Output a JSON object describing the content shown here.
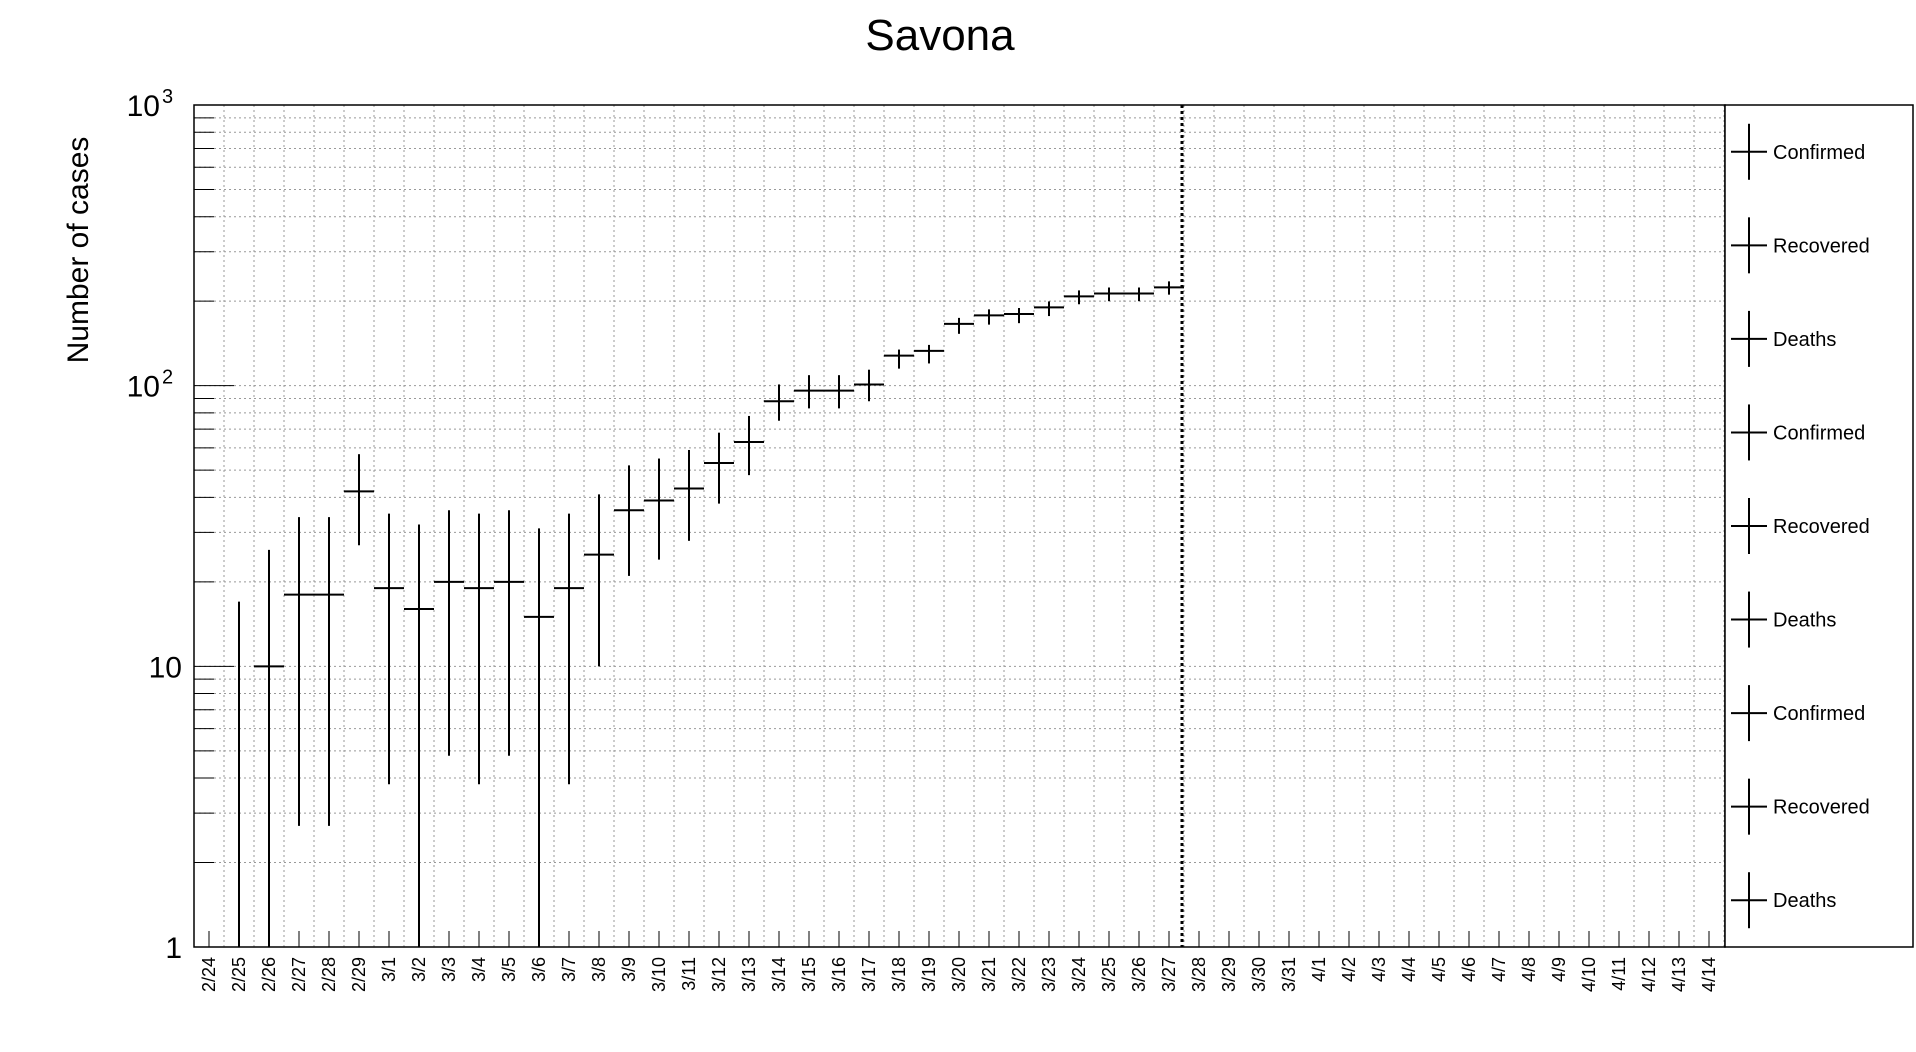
{
  "chart_data": {
    "type": "scatter",
    "title": "Savona",
    "xlabel": "",
    "ylabel": "Number of cases",
    "yscale": "log",
    "ylim": [
      1,
      1000
    ],
    "y_ticks": [
      {
        "value": 1,
        "base": "1",
        "exp": ""
      },
      {
        "value": 10,
        "base": "10",
        "exp": ""
      },
      {
        "value": 100,
        "base": "10",
        "exp": "2"
      },
      {
        "value": 1000,
        "base": "10",
        "exp": "3"
      }
    ],
    "grid": true,
    "legend_position": "right",
    "categories": [
      "2/24",
      "2/25",
      "2/26",
      "2/27",
      "2/28",
      "2/29",
      "3/1",
      "3/2",
      "3/3",
      "3/4",
      "3/5",
      "3/6",
      "3/7",
      "3/8",
      "3/9",
      "3/10",
      "3/11",
      "3/12",
      "3/13",
      "3/14",
      "3/15",
      "3/16",
      "3/17",
      "3/18",
      "3/19",
      "3/20",
      "3/21",
      "3/22",
      "3/23",
      "3/24",
      "3/25",
      "3/26",
      "3/27",
      "3/28",
      "3/29",
      "3/30",
      "3/31",
      "4/1",
      "4/2",
      "4/3",
      "4/4",
      "4/5",
      "4/6",
      "4/7",
      "4/8",
      "4/9",
      "4/10",
      "4/11",
      "4/12",
      "4/13",
      "4/14"
    ],
    "current_date_marker": "3/27",
    "series": [
      {
        "name": "Confirmed",
        "values": [
          null,
          null,
          10,
          18,
          18,
          42,
          19,
          16,
          20,
          19,
          20,
          15,
          19,
          25,
          36,
          39,
          43,
          53,
          63,
          88,
          96,
          96,
          101,
          128,
          133,
          166,
          178,
          180,
          190,
          208,
          213,
          213,
          224,
          null,
          null,
          null,
          null,
          null,
          null,
          null,
          null,
          null,
          null,
          null,
          null,
          null,
          null,
          null,
          null,
          null,
          null
        ],
        "error_low": [
          null,
          null,
          0,
          2.7,
          2.7,
          27,
          3.8,
          1,
          4.8,
          3.8,
          4.8,
          1,
          3.8,
          10,
          21,
          24,
          28,
          38,
          48,
          75,
          83,
          83,
          88,
          115,
          120,
          153,
          165,
          167,
          177,
          195,
          200,
          200,
          211,
          null,
          null,
          null,
          null,
          null,
          null,
          null,
          null,
          null,
          null,
          null,
          null,
          null,
          null,
          null,
          null,
          null,
          null
        ],
        "error_high": [
          null,
          17,
          26,
          34,
          34,
          57,
          35,
          32,
          36,
          35,
          36,
          31,
          35,
          41,
          52,
          55,
          59,
          68,
          78,
          101,
          109,
          109,
          114,
          null,
          null,
          null,
          null,
          null,
          null,
          null,
          null,
          null,
          null,
          null,
          null,
          null,
          null,
          null,
          null,
          null,
          null,
          null,
          null,
          null,
          null,
          null,
          null,
          null,
          null,
          null,
          null
        ]
      }
    ],
    "legend": [
      {
        "label": "Confirmed"
      },
      {
        "label": "Recovered"
      },
      {
        "label": "Deaths"
      },
      {
        "label": "Confirmed"
      },
      {
        "label": "Recovered"
      },
      {
        "label": "Deaths"
      },
      {
        "label": "Confirmed"
      },
      {
        "label": "Recovered"
      },
      {
        "label": "Deaths"
      }
    ]
  }
}
